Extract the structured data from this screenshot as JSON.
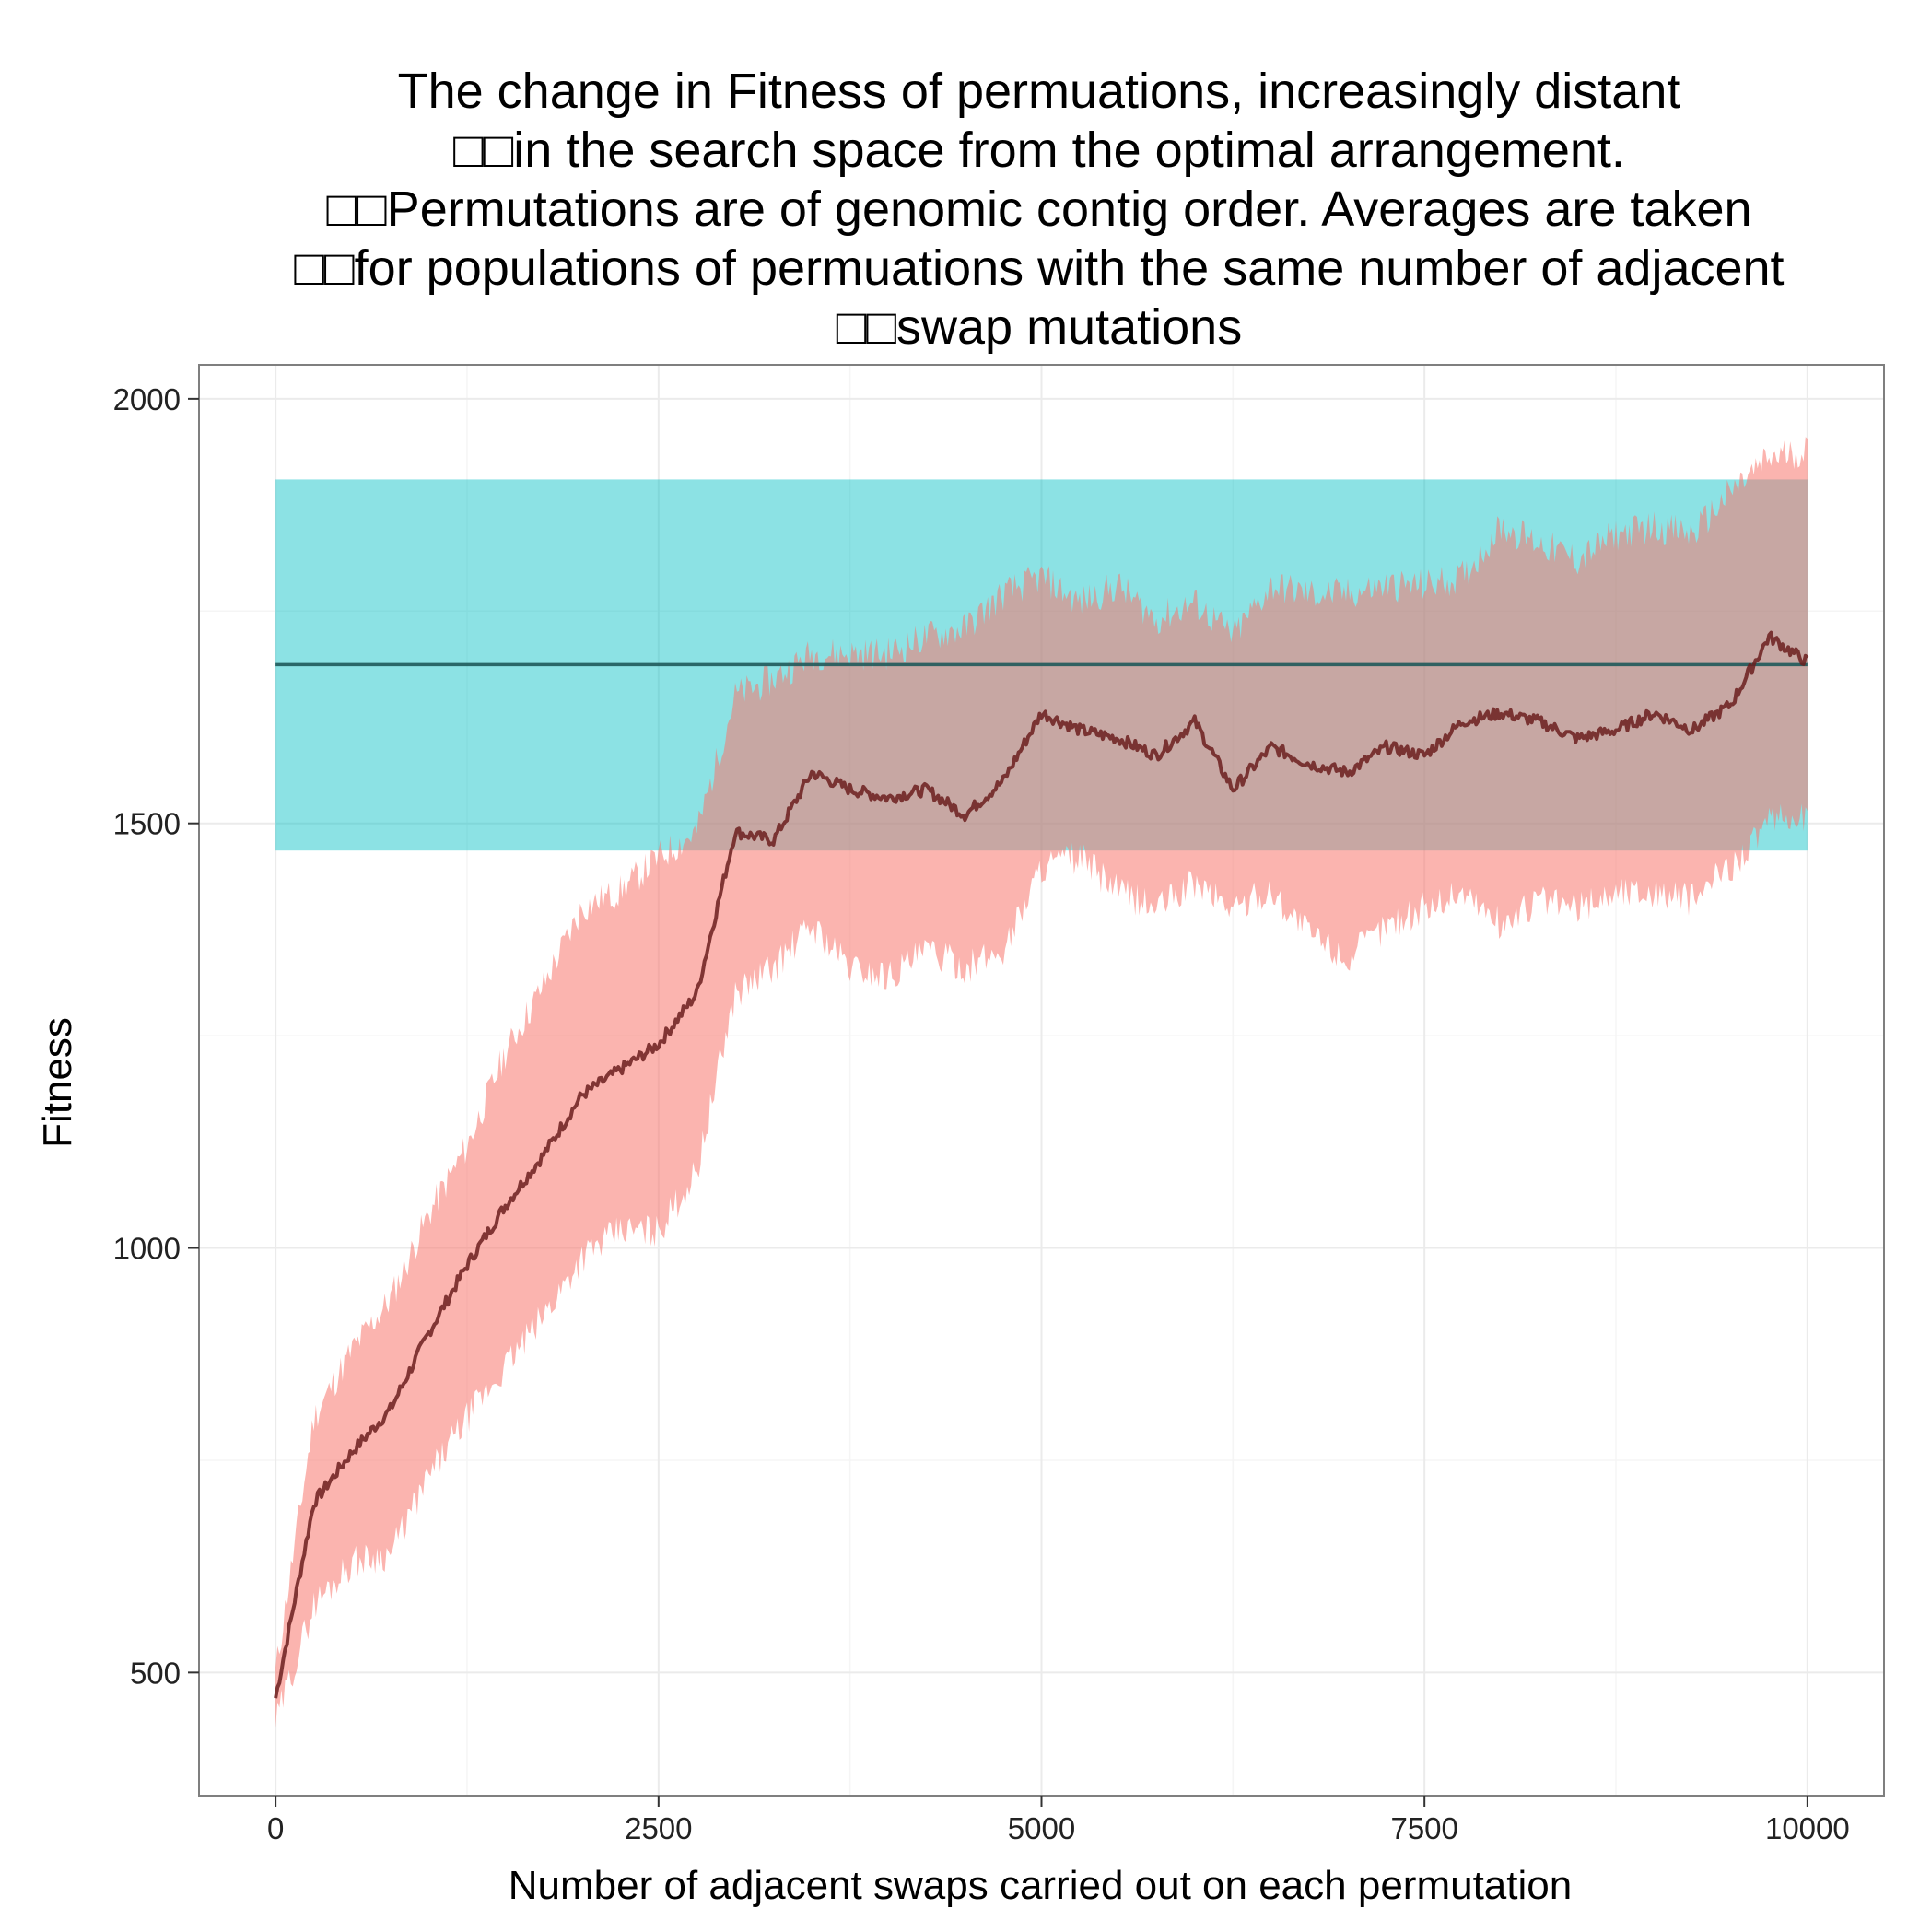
{
  "chart_data": {
    "type": "area",
    "title_lines": [
      "The change in Fitness of permuations, increasingly distant",
      "□□in the search space from the optimal arrangement.",
      "□□Permutations are of genomic contig order. Averages are taken",
      "□□for populations of permuations with the same number of adjacent",
      "□□swap mutations"
    ],
    "xlabel": "Number of adjacent swaps carried out on each permutation",
    "ylabel": "Fitness",
    "xlim": [
      -500,
      10500
    ],
    "ylim": [
      355,
      2040
    ],
    "x_ticks": [
      0,
      2500,
      5000,
      7500,
      10000
    ],
    "y_ticks": [
      500,
      1000,
      1500,
      2000
    ],
    "x_tick_labels": [
      "0",
      "2500",
      "5000",
      "7500",
      "10000"
    ],
    "y_tick_labels": [
      "500",
      "1000",
      "1500",
      "2000"
    ],
    "grid": true,
    "colors": {
      "ribbon_permutations": "#F8766D",
      "ribbon_optimal": "#00BFC4",
      "line_permutations": "#6b1f1f",
      "line_optimal": "#1f5a5a",
      "panel_border": "#7f7f7f",
      "grid": "#ebebeb"
    },
    "series": [
      {
        "kind": "band",
        "x": [
          0,
          250,
          500,
          750,
          1000,
          1250,
          1500,
          1750,
          2000,
          2250,
          2500,
          2750,
          3000,
          3250,
          3500,
          3750,
          4000,
          4250,
          4500,
          4750,
          5000,
          5250,
          5500,
          5750,
          6000,
          6250,
          6500,
          6750,
          7000,
          7250,
          7500,
          7750,
          8000,
          8250,
          8500,
          8750,
          9000,
          9250,
          9500,
          9750,
          10000
        ],
        "mean": [
          470,
          700,
          760,
          810,
          900,
          980,
          1050,
          1110,
          1180,
          1210,
          1240,
          1300,
          1490,
          1480,
          1560,
          1540,
          1530,
          1540,
          1510,
          1550,
          1630,
          1610,
          1600,
          1580,
          1620,
          1540,
          1590,
          1570,
          1560,
          1590,
          1580,
          1620,
          1630,
          1620,
          1600,
          1610,
          1630,
          1610,
          1640,
          1720,
          1690
        ],
        "lower": [
          440,
          580,
          630,
          640,
          730,
          800,
          860,
          920,
          990,
          1020,
          1020,
          1090,
          1300,
          1330,
          1380,
          1330,
          1320,
          1350,
          1330,
          1350,
          1450,
          1460,
          1420,
          1400,
          1430,
          1400,
          1420,
          1370,
          1340,
          1380,
          1400,
          1420,
          1380,
          1410,
          1400,
          1420,
          1420,
          1410,
          1450,
          1500,
          1510
        ],
        "upper": [
          500,
          800,
          880,
          940,
          1040,
          1120,
          1230,
          1310,
          1400,
          1420,
          1460,
          1490,
          1650,
          1670,
          1700,
          1700,
          1700,
          1720,
          1730,
          1770,
          1790,
          1760,
          1780,
          1740,
          1760,
          1720,
          1780,
          1770,
          1770,
          1780,
          1780,
          1790,
          1850,
          1830,
          1810,
          1840,
          1850,
          1840,
          1890,
          1930,
          1940
        ]
      },
      {
        "kind": "reference",
        "x": [
          0,
          10000
        ],
        "mean": 1687,
        "lower": 1468,
        "upper": 1905
      }
    ]
  }
}
